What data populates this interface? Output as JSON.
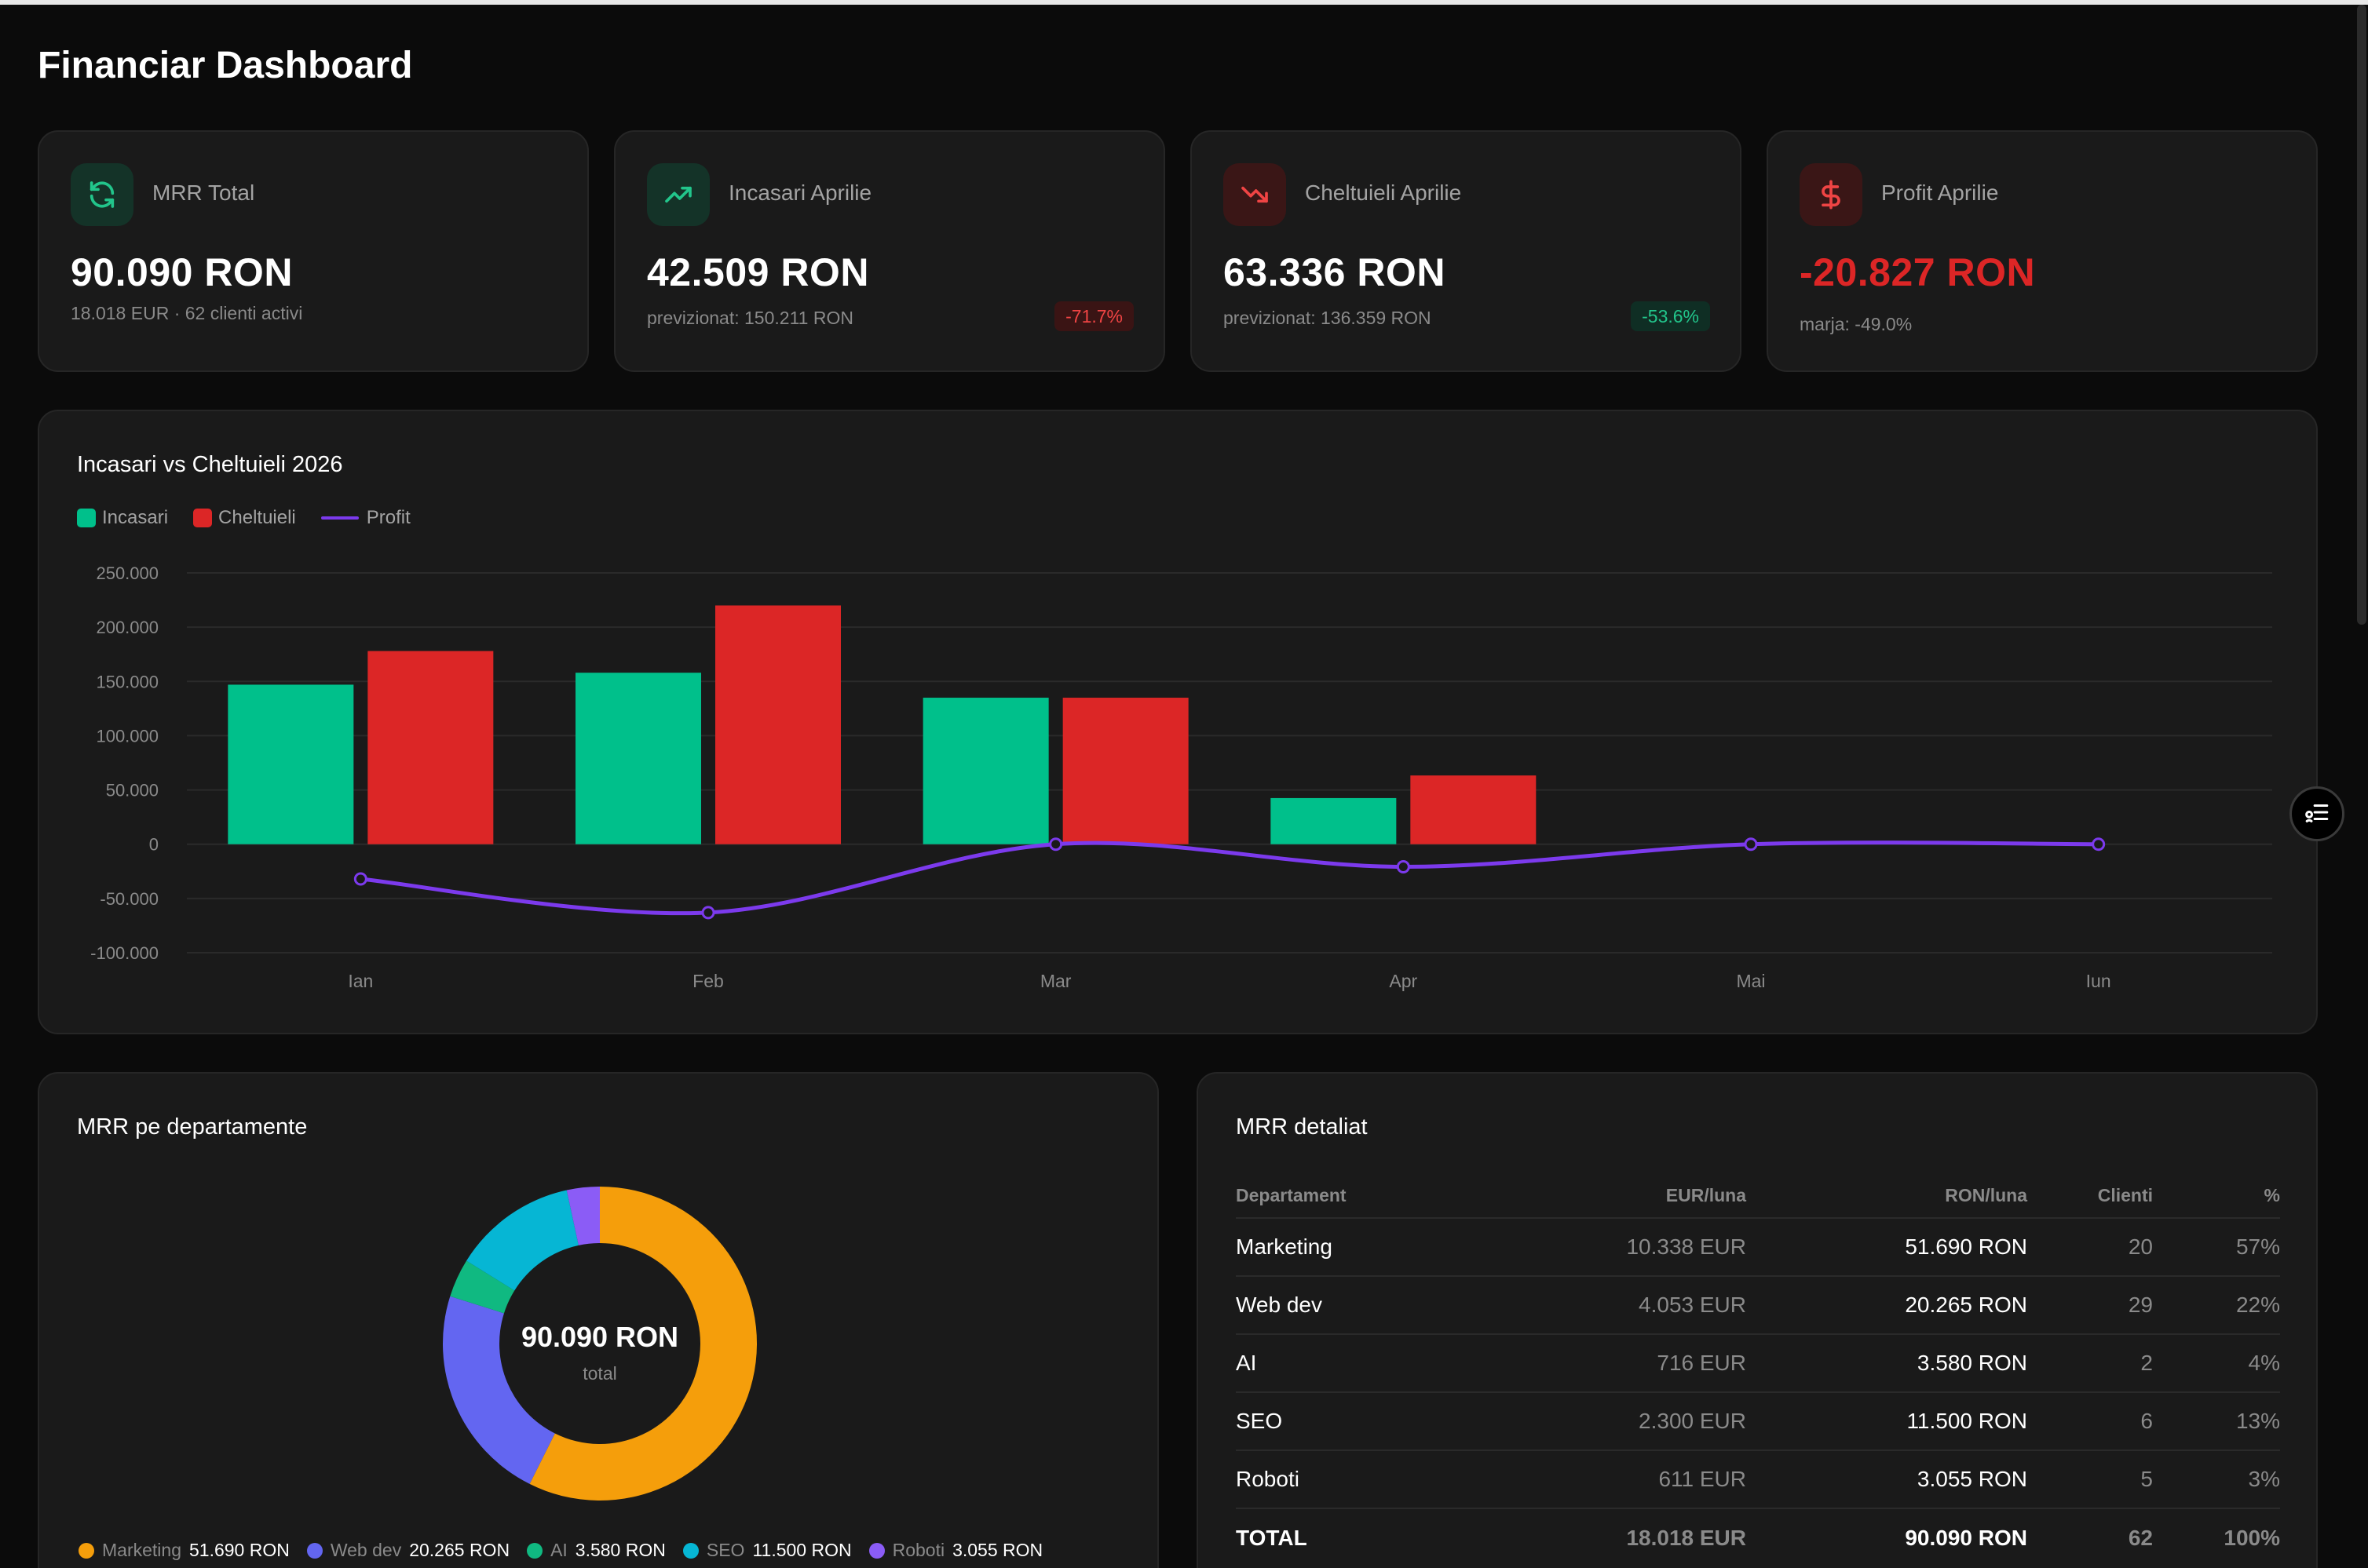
{
  "page": {
    "title": "Financiar Dashboard"
  },
  "colors": {
    "income": "#00c08b",
    "expense": "#dc2626",
    "profit": "#7c3aed",
    "marketing": "#f59e0b",
    "webdev": "#6366f1",
    "ai": "#10b981",
    "seo": "#06b6d4",
    "roboti": "#8b5cf6"
  },
  "stats": [
    {
      "icon": "refresh-icon",
      "label": "MRR Total",
      "value": "90.090 RON",
      "sub": "18.018 EUR · 62 clienti activi",
      "badge": ""
    },
    {
      "icon": "trending-up-icon",
      "label": "Incasari Aprilie",
      "value": "42.509 RON",
      "sub": "previzionat: 150.211 RON",
      "badge": "-71.7%"
    },
    {
      "icon": "trending-down-icon",
      "label": "Cheltuieli Aprilie",
      "value": "63.336 RON",
      "sub": "previzionat: 136.359 RON",
      "badge": "-53.6%"
    },
    {
      "icon": "dollar-icon",
      "label": "Profit Aprilie",
      "value": "-20.827 RON",
      "sub": "marja: -49.0%",
      "badge": ""
    }
  ],
  "chart_data": [
    {
      "type": "bar",
      "title": "Incasari vs Cheltuieli 2026",
      "categories": [
        "Ian",
        "Feb",
        "Mar",
        "Apr",
        "Mai",
        "Iun"
      ],
      "series": [
        {
          "name": "Incasari",
          "type": "bar",
          "values": [
            147000,
            158000,
            135000,
            42509,
            0,
            0
          ]
        },
        {
          "name": "Cheltuieli",
          "type": "bar",
          "values": [
            178000,
            220000,
            135000,
            63336,
            0,
            0
          ]
        },
        {
          "name": "Profit",
          "type": "line",
          "values": [
            -32000,
            -63000,
            0,
            -20827,
            0,
            0
          ]
        }
      ],
      "yticks": [
        "250.000",
        "200.000",
        "150.000",
        "100.000",
        "50.000",
        "0",
        "-50.000",
        "-100.000"
      ],
      "ylim": [
        -100000,
        250000
      ],
      "grid": true,
      "legend": "top-left"
    },
    {
      "type": "pie",
      "title": "MRR pe departamente",
      "center_value": "90.090 RON",
      "center_label": "total",
      "slices": [
        {
          "name": "Marketing",
          "value": 51690,
          "label": "51.690 RON"
        },
        {
          "name": "Web dev",
          "value": 20265,
          "label": "20.265 RON"
        },
        {
          "name": "AI",
          "value": 3580,
          "label": "3.580 RON"
        },
        {
          "name": "SEO",
          "value": 11500,
          "label": "11.500 RON"
        },
        {
          "name": "Roboti",
          "value": 3055,
          "label": "3.055 RON"
        }
      ]
    }
  ],
  "table": {
    "title": "MRR detaliat",
    "headers": [
      "Departament",
      "EUR/luna",
      "RON/luna",
      "Clienti",
      "%"
    ],
    "rows": [
      [
        "Marketing",
        "10.338 EUR",
        "51.690 RON",
        "20",
        "57%"
      ],
      [
        "Web dev",
        "4.053 EUR",
        "20.265 RON",
        "29",
        "22%"
      ],
      [
        "AI",
        "716 EUR",
        "3.580 RON",
        "2",
        "4%"
      ],
      [
        "SEO",
        "2.300 EUR",
        "11.500 RON",
        "6",
        "13%"
      ],
      [
        "Roboti",
        "611 EUR",
        "3.055 RON",
        "5",
        "3%"
      ]
    ],
    "total": [
      "TOTAL",
      "18.018 EUR",
      "90.090 RON",
      "62",
      "100%"
    ]
  },
  "float_button": {
    "icon": "tasks-icon"
  }
}
